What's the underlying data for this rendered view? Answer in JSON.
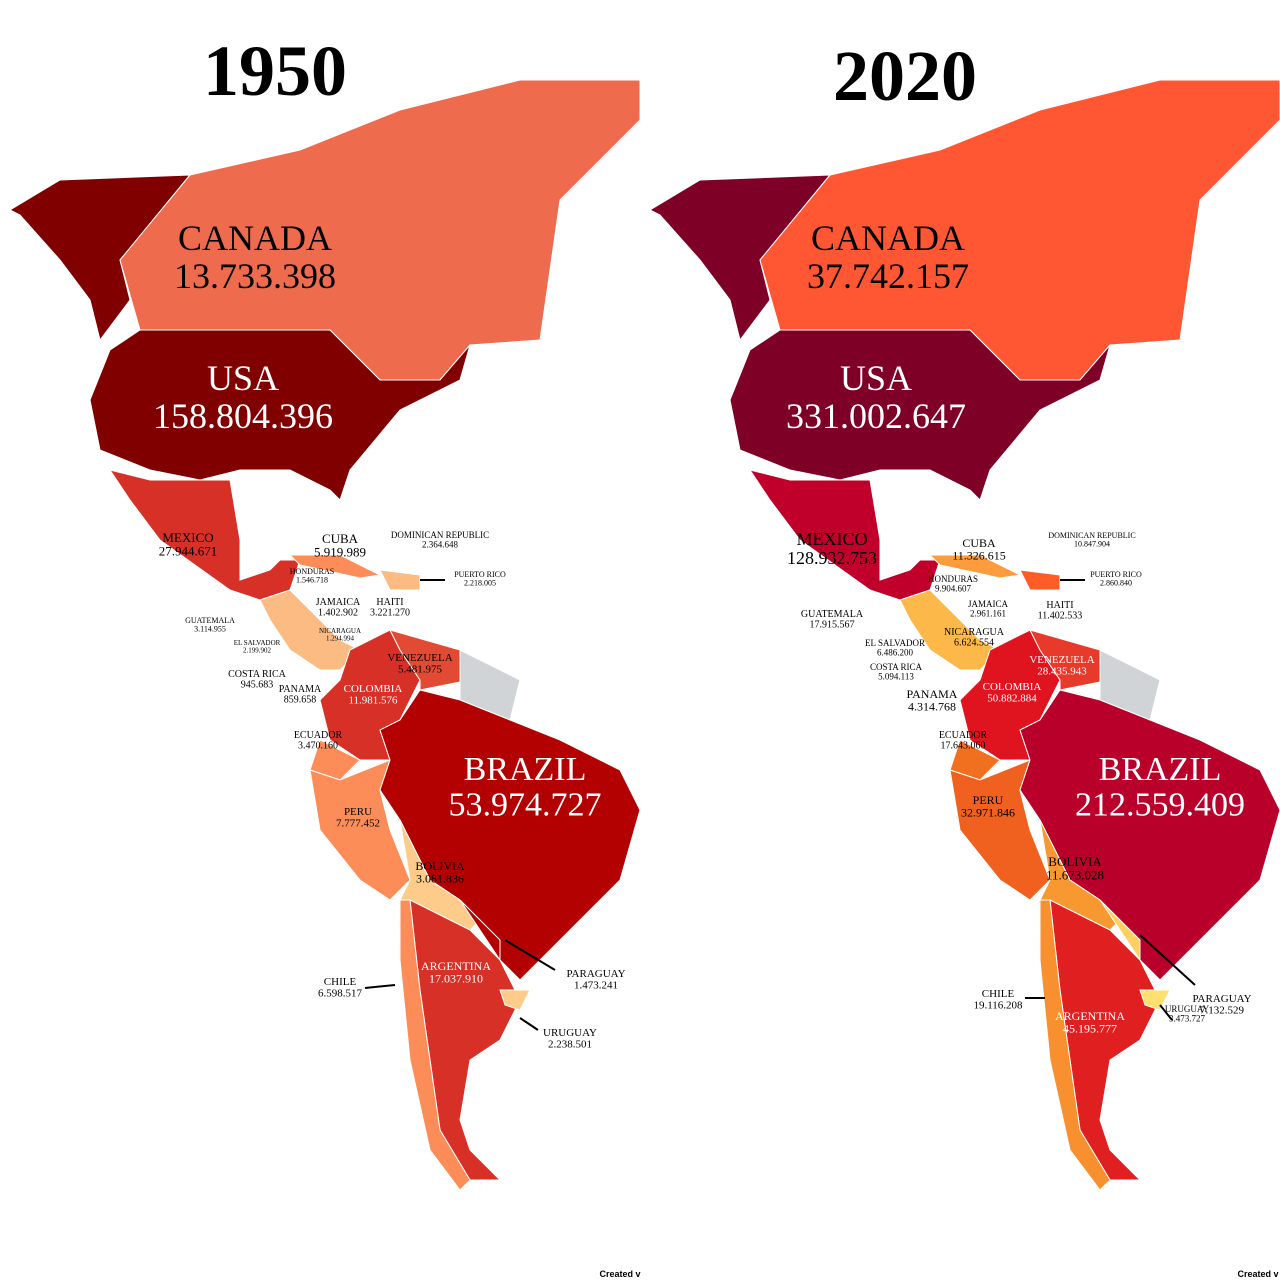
{
  "maps": [
    {
      "year": "1950",
      "countries": [
        {
          "name": "CANADA",
          "population": "13.733.398"
        },
        {
          "name": "USA",
          "population": "158.804.396"
        },
        {
          "name": "MEXICO",
          "population": "27.944.671"
        },
        {
          "name": "CUBA",
          "population": "5.919.989"
        },
        {
          "name": "DOMINICAN REPUBLIC",
          "population": "2.364.648"
        },
        {
          "name": "PUERTO RICO",
          "population": "2.218.005"
        },
        {
          "name": "HONDURAS",
          "population": "1.546.718"
        },
        {
          "name": "JAMAICA",
          "population": "1.402.902"
        },
        {
          "name": "HAITI",
          "population": "3.221.270"
        },
        {
          "name": "GUATEMALA",
          "population": "3.114.955"
        },
        {
          "name": "EL SALVADOR",
          "population": "2.199.902"
        },
        {
          "name": "NICARAGUA",
          "population": "1.294.994"
        },
        {
          "name": "COSTA RICA",
          "population": "945.683"
        },
        {
          "name": "PANAMA",
          "population": "859.658"
        },
        {
          "name": "VENEZUELA",
          "population": "5.481.975"
        },
        {
          "name": "COLOMBIA",
          "population": "11.981.576"
        },
        {
          "name": "ECUADOR",
          "population": "3.470.160"
        },
        {
          "name": "BRAZIL",
          "population": "53.974.727"
        },
        {
          "name": "PERU",
          "population": "7.777.452"
        },
        {
          "name": "BOLIVIA",
          "population": "3.081.836"
        },
        {
          "name": "ARGENTINA",
          "population": "17.037.910"
        },
        {
          "name": "PARAGUAY",
          "population": "1.473.241"
        },
        {
          "name": "CHILE",
          "population": "6.598.517"
        },
        {
          "name": "URUGUAY",
          "population": "2.238.501"
        }
      ]
    },
    {
      "year": "2020",
      "countries": [
        {
          "name": "CANADA",
          "population": "37.742.157"
        },
        {
          "name": "USA",
          "population": "331.002.647"
        },
        {
          "name": "MEXICO",
          "population": "128.932.753"
        },
        {
          "name": "CUBA",
          "population": "11.326.615"
        },
        {
          "name": "DOMINICAN REPUBLIC",
          "population": "10.847.904"
        },
        {
          "name": "PUERTO RICO",
          "population": "2.860.840"
        },
        {
          "name": "HONDURAS",
          "population": "9.904.607"
        },
        {
          "name": "JAMAICA",
          "population": "2.961.161"
        },
        {
          "name": "HAITI",
          "population": "11.402.533"
        },
        {
          "name": "GUATEMALA",
          "population": "17.915.567"
        },
        {
          "name": "EL SALVADOR",
          "population": "6.486.200"
        },
        {
          "name": "NICARAGUA",
          "population": "6.624.554"
        },
        {
          "name": "COSTA RICA",
          "population": "5.094.113"
        },
        {
          "name": "PANAMA",
          "population": "4.314.768"
        },
        {
          "name": "VENEZUELA",
          "population": "28.435.943"
        },
        {
          "name": "COLOMBIA",
          "population": "50.882.884"
        },
        {
          "name": "ECUADOR",
          "population": "17.643.060"
        },
        {
          "name": "BRAZIL",
          "population": "212.559.409"
        },
        {
          "name": "PERU",
          "population": "32.971.846"
        },
        {
          "name": "BOLIVIA",
          "population": "11.673.028"
        },
        {
          "name": "ARGENTINA",
          "population": "45.195.777"
        },
        {
          "name": "PARAGUAY",
          "population": "7.132.529"
        },
        {
          "name": "CHILE",
          "population": "19.116.208"
        },
        {
          "name": "URUGUAY",
          "population": "3.473.727"
        }
      ]
    }
  ],
  "footer": {
    "credit": "Created v"
  }
}
